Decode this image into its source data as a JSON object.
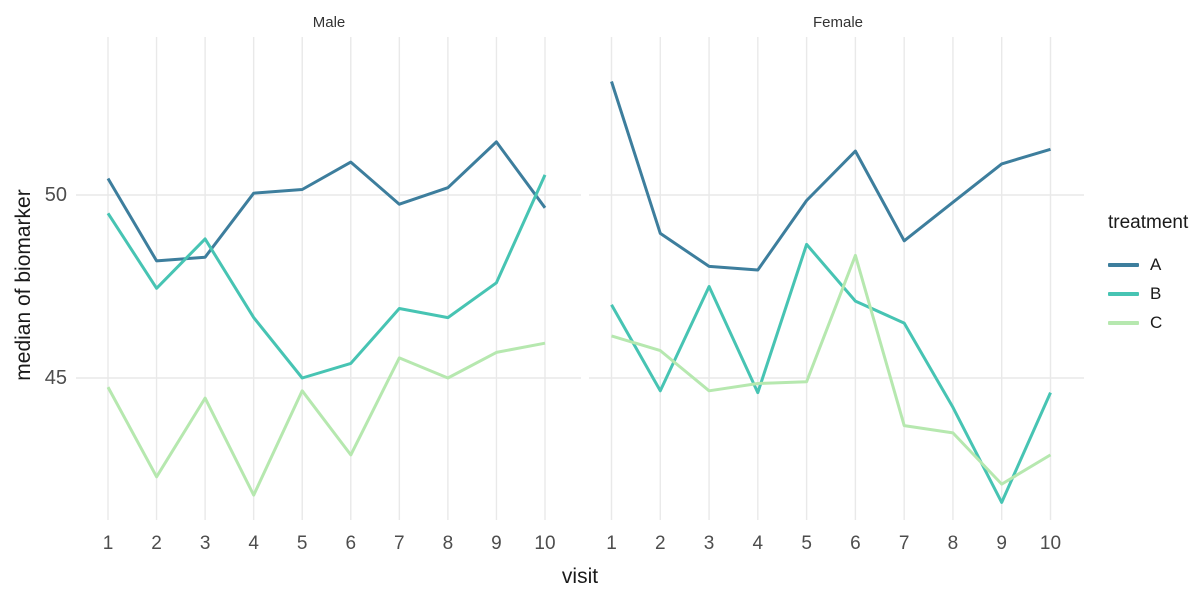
{
  "chart_data": {
    "type": "line",
    "title": "",
    "xlabel": "visit",
    "ylabel": "median of biomarker",
    "x": [
      1,
      2,
      3,
      4,
      5,
      6,
      7,
      8,
      9,
      10
    ],
    "y_ticks": [
      50,
      45
    ],
    "ylim": [
      41.1,
      54.3
    ],
    "grid": "major-only",
    "legend": {
      "title": "treatment",
      "position": "right",
      "entries": [
        {
          "label": "A",
          "color": "#3d7e9d"
        },
        {
          "label": "B",
          "color": "#47c4b3"
        },
        {
          "label": "C",
          "color": "#b6e8af"
        }
      ]
    },
    "facets": [
      {
        "label": "Male",
        "series": [
          {
            "name": "A",
            "values": [
              50.45,
              48.2,
              48.3,
              50.05,
              50.15,
              50.9,
              49.75,
              50.2,
              51.45,
              49.65
            ]
          },
          {
            "name": "B",
            "values": [
              49.5,
              47.45,
              48.8,
              46.65,
              45.0,
              45.4,
              46.9,
              46.65,
              47.6,
              50.55
            ]
          },
          {
            "name": "C",
            "values": [
              44.75,
              42.3,
              44.45,
              41.8,
              44.65,
              42.9,
              45.55,
              45.0,
              45.7,
              45.95
            ]
          }
        ]
      },
      {
        "label": "Female",
        "series": [
          {
            "name": "A",
            "values": [
              53.1,
              48.95,
              48.05,
              47.95,
              49.85,
              51.2,
              48.75,
              49.8,
              50.85,
              51.25
            ]
          },
          {
            "name": "B",
            "values": [
              47.0,
              44.65,
              47.5,
              44.6,
              48.65,
              47.1,
              46.5,
              44.2,
              41.6,
              44.6
            ]
          },
          {
            "name": "C",
            "values": [
              46.15,
              45.75,
              44.65,
              44.85,
              44.9,
              48.35,
              43.7,
              43.5,
              42.1,
              42.9
            ]
          }
        ]
      }
    ],
    "colors": {
      "grid": "#e9e9e9",
      "tick_text": "#4d4d4d",
      "axis_title": "#1a1a1a",
      "strip_text": "#333333",
      "background": "#ffffff"
    }
  }
}
